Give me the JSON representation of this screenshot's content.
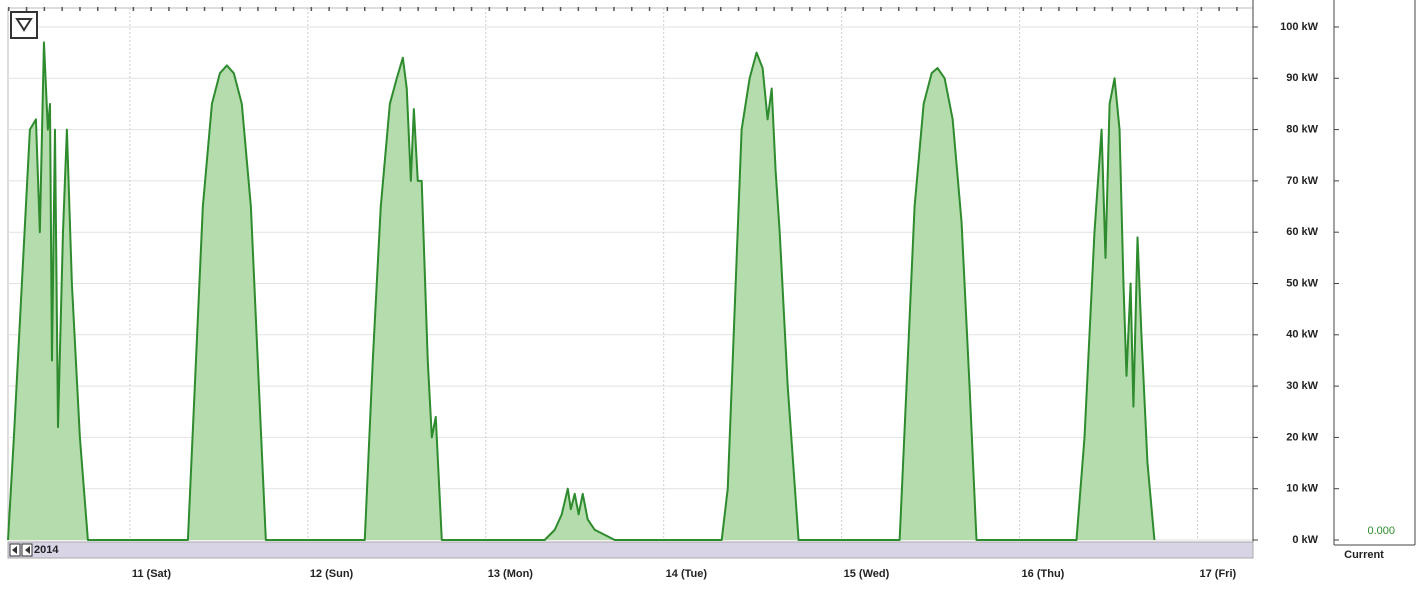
{
  "chart_data": {
    "type": "area",
    "color": "#2e8b2e",
    "fill": "#b5dcad",
    "grid": true,
    "x": [
      10.315,
      10.348,
      10.393,
      10.438,
      10.472,
      10.494,
      10.517,
      10.539,
      10.551,
      10.562,
      10.579,
      10.596,
      10.624,
      10.646,
      10.674,
      10.719,
      10.764,
      11.326,
      11.365,
      11.41,
      11.461,
      11.506,
      11.545,
      11.584,
      11.629,
      11.68,
      11.725,
      11.764,
      12.32,
      12.365,
      12.41,
      12.461,
      12.5,
      12.534,
      12.556,
      12.579,
      12.596,
      12.618,
      12.64,
      12.674,
      12.697,
      12.719,
      12.753,
      13.331,
      13.388,
      13.427,
      13.461,
      13.478,
      13.5,
      13.522,
      13.545,
      13.573,
      13.612,
      13.669,
      13.725,
      14.326,
      14.36,
      14.399,
      14.438,
      14.483,
      14.522,
      14.556,
      14.584,
      14.607,
      14.629,
      14.652,
      14.697,
      14.758,
      15.326,
      15.365,
      15.41,
      15.461,
      15.506,
      15.539,
      15.579,
      15.624,
      15.674,
      15.719,
      15.758,
      16.32,
      16.365,
      16.421,
      16.461,
      16.483,
      16.506,
      16.534,
      16.562,
      16.584,
      16.601,
      16.624,
      16.64,
      16.663,
      16.685,
      16.719,
      16.758
    ],
    "values": [
      0,
      20,
      50,
      80,
      82,
      60,
      97,
      80,
      85,
      35,
      80,
      22,
      60,
      80,
      50,
      20,
      0,
      0,
      30,
      65,
      85,
      91,
      92.5,
      91,
      85,
      65,
      30,
      0,
      0,
      35,
      65,
      85,
      90,
      94,
      88,
      70,
      84,
      70,
      70,
      35,
      20,
      24,
      0,
      0,
      2,
      5,
      10,
      6,
      9,
      5,
      9,
      4,
      2,
      1,
      0,
      0,
      10,
      45,
      80,
      90,
      95,
      92,
      82,
      88,
      72,
      60,
      30,
      0,
      0,
      30,
      65,
      85,
      91,
      92,
      90,
      82,
      62,
      30,
      0,
      0,
      20,
      60,
      80,
      55,
      85,
      90,
      80,
      50,
      32,
      50,
      26,
      59,
      40,
      15,
      0
    ],
    "xlim": [
      10.315,
      17.312
    ],
    "xticks": [
      {
        "value": 11,
        "label": "11 (Sat)"
      },
      {
        "value": 12,
        "label": "12 (Sun)"
      },
      {
        "value": 13,
        "label": "13 (Mon)"
      },
      {
        "value": 14,
        "label": "14 (Tue)"
      },
      {
        "value": 15,
        "label": "15 (Wed)"
      },
      {
        "value": 16,
        "label": "16 (Thu)"
      },
      {
        "value": 17,
        "label": "17 (Fri)"
      }
    ],
    "ylim": [
      0,
      103.7
    ],
    "yticks": [
      {
        "value": 0,
        "label": "0 kW"
      },
      {
        "value": 10,
        "label": "10 kW"
      },
      {
        "value": 20,
        "label": "20 kW"
      },
      {
        "value": 30,
        "label": "30 kW"
      },
      {
        "value": 40,
        "label": "40 kW"
      },
      {
        "value": 50,
        "label": "50 kW"
      },
      {
        "value": 60,
        "label": "60 kW"
      },
      {
        "value": 70,
        "label": "70 kW"
      },
      {
        "value": 80,
        "label": "80 kW"
      },
      {
        "value": 90,
        "label": "90 kW"
      },
      {
        "value": 100,
        "label": "100 kW"
      }
    ],
    "year_label": "2014",
    "current_label": "Current",
    "current_value": "0.000"
  }
}
